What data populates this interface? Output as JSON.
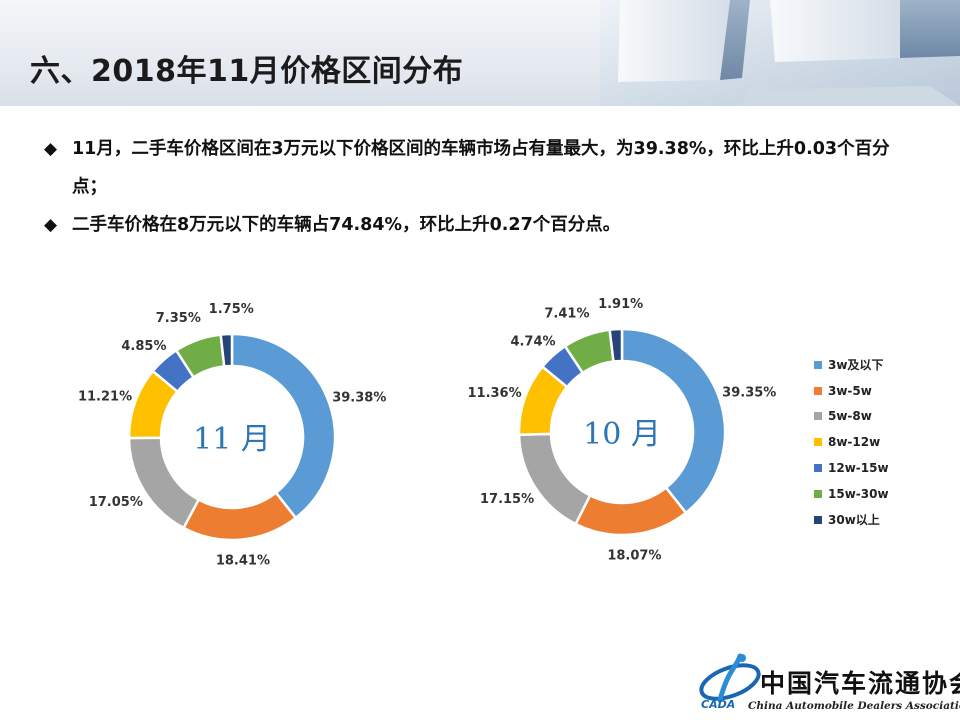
{
  "page": {
    "title": "六、2018年11月价格区间分布",
    "bullets": [
      {
        "icon": "diamond-bullet",
        "text": "11月，二手车价格区间在3万元以下价格区间的车辆市场占有量最大，为39.38%，环比上升0.03个百分点；"
      },
      {
        "icon": "diamond-bullet",
        "text": "二手车价格在8万元以下的车辆占74.84%，环比上升0.27个百分点。"
      }
    ]
  },
  "footer": {
    "org_cn": "中国汽车流通协会",
    "org_en": "China Automobile Dealers Association",
    "logo_text": "CADA"
  },
  "chart_data": [
    {
      "type": "pie",
      "subtype": "donut",
      "center_label": "11 月",
      "categories": [
        "3w及以下",
        "3w-5w",
        "5w-8w",
        "8w-12w",
        "12w-15w",
        "15w-30w",
        "30w以上"
      ],
      "values": [
        39.38,
        18.41,
        17.05,
        11.21,
        4.85,
        7.35,
        1.75
      ],
      "data_labels": [
        "39.38%",
        "18.41%",
        "17.05%",
        "11.21%",
        "4.85%",
        "7.35%",
        "1.75%"
      ],
      "colors": [
        "#5b9bd5",
        "#ed7d31",
        "#a5a5a5",
        "#ffc000",
        "#4472c4",
        "#70ad47",
        "#264478"
      ]
    },
    {
      "type": "pie",
      "subtype": "donut",
      "center_label": "10 月",
      "categories": [
        "3w及以下",
        "3w-5w",
        "5w-8w",
        "8w-12w",
        "12w-15w",
        "15w-30w",
        "30w以上"
      ],
      "values": [
        39.35,
        18.07,
        17.15,
        11.36,
        4.74,
        7.41,
        1.91
      ],
      "data_labels": [
        "39.35%",
        "18.07%",
        "17.15%",
        "11.36%",
        "4.74%",
        "7.41%",
        "1.91%"
      ],
      "colors": [
        "#5b9bd5",
        "#ed7d31",
        "#a5a5a5",
        "#ffc000",
        "#4472c4",
        "#70ad47",
        "#264478"
      ],
      "legend": {
        "position": "right",
        "entries": [
          "3w及以下",
          "3w-5w",
          "5w-8w",
          "8w-12w",
          "12w-15w",
          "15w-30w",
          "30w以上"
        ]
      }
    }
  ]
}
